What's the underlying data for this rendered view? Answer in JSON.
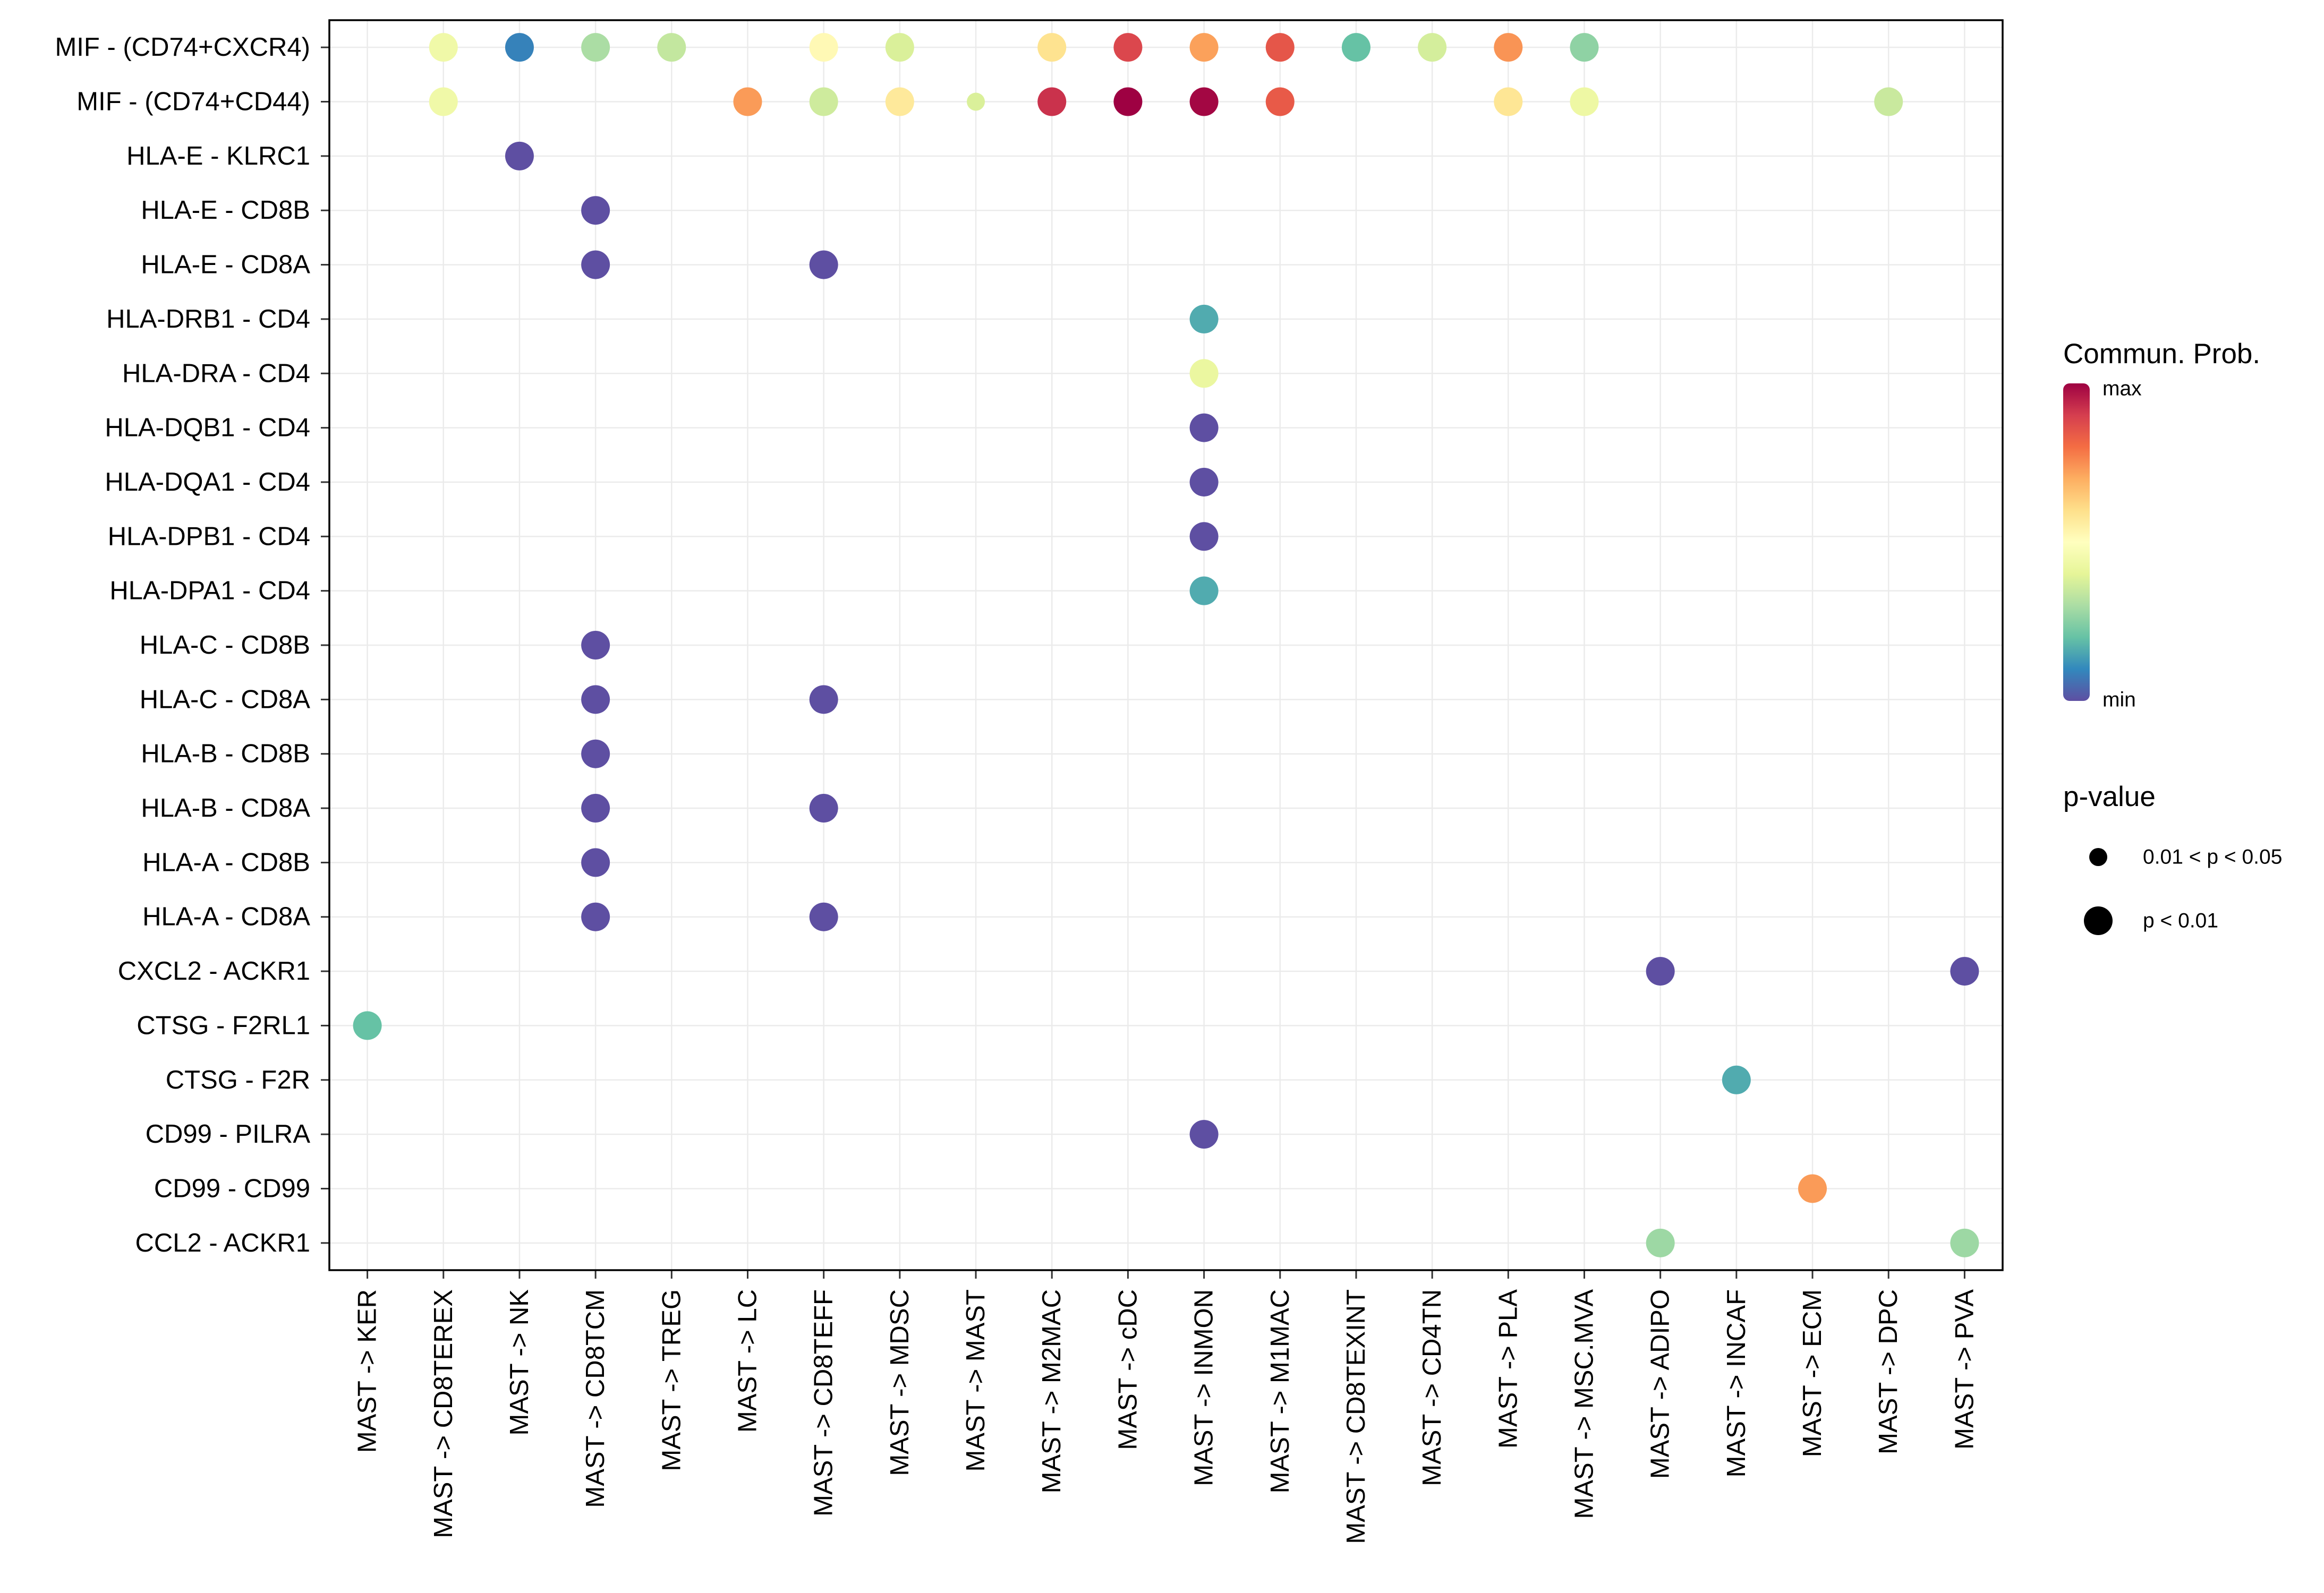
{
  "chart_data": {
    "type": "scatter",
    "subtype": "dot-plot",
    "x_categories": [
      "MAST -> KER",
      "MAST -> CD8TEREX",
      "MAST -> NK",
      "MAST -> CD8TCM",
      "MAST -> TREG",
      "MAST -> LC",
      "MAST -> CD8TEFF",
      "MAST -> MDSC",
      "MAST -> MAST",
      "MAST -> M2MAC",
      "MAST -> cDC",
      "MAST -> INMON",
      "MAST -> M1MAC",
      "MAST -> CD8TEXINT",
      "MAST -> CD4TN",
      "MAST -> PLA",
      "MAST -> MSC.MVA",
      "MAST -> ADIPO",
      "MAST -> INCAF",
      "MAST -> ECM",
      "MAST -> DPC",
      "MAST -> PVA"
    ],
    "y_categories": [
      "MIF - (CD74+CXCR4)",
      "MIF - (CD74+CD44)",
      "HLA-E - KLRC1",
      "HLA-E - CD8B",
      "HLA-E - CD8A",
      "HLA-DRB1 - CD4",
      "HLA-DRA - CD4",
      "HLA-DQB1 - CD4",
      "HLA-DQA1 - CD4",
      "HLA-DPB1 - CD4",
      "HLA-DPA1 - CD4",
      "HLA-C - CD8B",
      "HLA-C - CD8A",
      "HLA-B - CD8B",
      "HLA-B - CD8A",
      "HLA-A - CD8B",
      "HLA-A - CD8A",
      "CXCL2 - ACKR1",
      "CTSG - F2RL1",
      "CTSG - F2R",
      "CD99 - PILRA",
      "CD99 - CD99",
      "CCL2 - ACKR1"
    ],
    "points": [
      {
        "y": "MIF - (CD74+CXCR4)",
        "x": "MAST -> CD8TEREX",
        "prob": 0.44,
        "p": "p < 0.01"
      },
      {
        "y": "MIF - (CD74+CXCR4)",
        "x": "MAST -> NK",
        "prob": 0.09,
        "p": "p < 0.01"
      },
      {
        "y": "MIF - (CD74+CXCR4)",
        "x": "MAST -> CD8TCM",
        "prob": 0.3,
        "p": "p < 0.01"
      },
      {
        "y": "MIF - (CD74+CXCR4)",
        "x": "MAST -> TREG",
        "prob": 0.34,
        "p": "p < 0.01"
      },
      {
        "y": "MIF - (CD74+CXCR4)",
        "x": "MAST -> CD8TEFF",
        "prob": 0.52,
        "p": "p < 0.01"
      },
      {
        "y": "MIF - (CD74+CXCR4)",
        "x": "MAST -> MDSC",
        "prob": 0.38,
        "p": "p < 0.01"
      },
      {
        "y": "MIF - (CD74+CXCR4)",
        "x": "MAST -> M2MAC",
        "prob": 0.59,
        "p": "p < 0.01"
      },
      {
        "y": "MIF - (CD74+CXCR4)",
        "x": "MAST -> cDC",
        "prob": 0.88,
        "p": "p < 0.01"
      },
      {
        "y": "MIF - (CD74+CXCR4)",
        "x": "MAST -> INMON",
        "prob": 0.72,
        "p": "p < 0.01"
      },
      {
        "y": "MIF - (CD74+CXCR4)",
        "x": "MAST -> M1MAC",
        "prob": 0.85,
        "p": "p < 0.01"
      },
      {
        "y": "MIF - (CD74+CXCR4)",
        "x": "MAST -> CD8TEXINT",
        "prob": 0.2,
        "p": "p < 0.01"
      },
      {
        "y": "MIF - (CD74+CXCR4)",
        "x": "MAST -> CD4TN",
        "prob": 0.37,
        "p": "p < 0.01"
      },
      {
        "y": "MIF - (CD74+CXCR4)",
        "x": "MAST -> PLA",
        "prob": 0.74,
        "p": "p < 0.01"
      },
      {
        "y": "MIF - (CD74+CXCR4)",
        "x": "MAST -> MSC.MVA",
        "prob": 0.26,
        "p": "p < 0.01"
      },
      {
        "y": "MIF - (CD74+CD44)",
        "x": "MAST -> CD8TEREX",
        "prob": 0.44,
        "p": "p < 0.01"
      },
      {
        "y": "MIF - (CD74+CD44)",
        "x": "MAST -> LC",
        "prob": 0.73,
        "p": "p < 0.01"
      },
      {
        "y": "MIF - (CD74+CD44)",
        "x": "MAST -> CD8TEFF",
        "prob": 0.36,
        "p": "p < 0.01"
      },
      {
        "y": "MIF - (CD74+CD44)",
        "x": "MAST -> MDSC",
        "prob": 0.57,
        "p": "p < 0.01"
      },
      {
        "y": "MIF - (CD74+CD44)",
        "x": "MAST -> MAST",
        "prob": 0.38,
        "p": "0.01 < p < 0.05"
      },
      {
        "y": "MIF - (CD74+CD44)",
        "x": "MAST -> M2MAC",
        "prob": 0.92,
        "p": "p < 0.01"
      },
      {
        "y": "MIF - (CD74+CD44)",
        "x": "MAST -> cDC",
        "prob": 1.0,
        "p": "p < 0.01"
      },
      {
        "y": "MIF - (CD74+CD44)",
        "x": "MAST -> INMON",
        "prob": 0.99,
        "p": "p < 0.01"
      },
      {
        "y": "MIF - (CD74+CD44)",
        "x": "MAST -> M1MAC",
        "prob": 0.84,
        "p": "p < 0.01"
      },
      {
        "y": "MIF - (CD74+CD44)",
        "x": "MAST -> PLA",
        "prob": 0.58,
        "p": "p < 0.01"
      },
      {
        "y": "MIF - (CD74+CD44)",
        "x": "MAST -> MSC.MVA",
        "prob": 0.43,
        "p": "p < 0.01"
      },
      {
        "y": "MIF - (CD74+CD44)",
        "x": "MAST -> DPC",
        "prob": 0.35,
        "p": "p < 0.01"
      },
      {
        "y": "HLA-E - KLRC1",
        "x": "MAST -> NK",
        "prob": 0.0,
        "p": "p < 0.01"
      },
      {
        "y": "HLA-E - CD8B",
        "x": "MAST -> CD8TCM",
        "prob": 0.0,
        "p": "p < 0.01"
      },
      {
        "y": "HLA-E - CD8A",
        "x": "MAST -> CD8TCM",
        "prob": 0.0,
        "p": "p < 0.01"
      },
      {
        "y": "HLA-E - CD8A",
        "x": "MAST -> CD8TEFF",
        "prob": 0.0,
        "p": "p < 0.01"
      },
      {
        "y": "HLA-DRB1 - CD4",
        "x": "MAST -> INMON",
        "prob": 0.16,
        "p": "p < 0.01"
      },
      {
        "y": "HLA-DRA - CD4",
        "x": "MAST -> INMON",
        "prob": 0.42,
        "p": "p < 0.01"
      },
      {
        "y": "HLA-DQB1 - CD4",
        "x": "MAST -> INMON",
        "prob": 0.0,
        "p": "p < 0.01"
      },
      {
        "y": "HLA-DQA1 - CD4",
        "x": "MAST -> INMON",
        "prob": 0.0,
        "p": "p < 0.01"
      },
      {
        "y": "HLA-DPB1 - CD4",
        "x": "MAST -> INMON",
        "prob": 0.0,
        "p": "p < 0.01"
      },
      {
        "y": "HLA-DPA1 - CD4",
        "x": "MAST -> INMON",
        "prob": 0.16,
        "p": "p < 0.01"
      },
      {
        "y": "HLA-C - CD8B",
        "x": "MAST -> CD8TCM",
        "prob": 0.0,
        "p": "p < 0.01"
      },
      {
        "y": "HLA-C - CD8A",
        "x": "MAST -> CD8TCM",
        "prob": 0.0,
        "p": "p < 0.01"
      },
      {
        "y": "HLA-C - CD8A",
        "x": "MAST -> CD8TEFF",
        "prob": 0.0,
        "p": "p < 0.01"
      },
      {
        "y": "HLA-B - CD8B",
        "x": "MAST -> CD8TCM",
        "prob": 0.0,
        "p": "p < 0.01"
      },
      {
        "y": "HLA-B - CD8A",
        "x": "MAST -> CD8TCM",
        "prob": 0.0,
        "p": "p < 0.01"
      },
      {
        "y": "HLA-B - CD8A",
        "x": "MAST -> CD8TEFF",
        "prob": 0.0,
        "p": "p < 0.01"
      },
      {
        "y": "HLA-A - CD8B",
        "x": "MAST -> CD8TCM",
        "prob": 0.0,
        "p": "p < 0.01"
      },
      {
        "y": "HLA-A - CD8A",
        "x": "MAST -> CD8TCM",
        "prob": 0.0,
        "p": "p < 0.01"
      },
      {
        "y": "HLA-A - CD8A",
        "x": "MAST -> CD8TEFF",
        "prob": 0.0,
        "p": "p < 0.01"
      },
      {
        "y": "CXCL2 - ACKR1",
        "x": "MAST -> ADIPO",
        "prob": 0.0,
        "p": "p < 0.01"
      },
      {
        "y": "CXCL2 - ACKR1",
        "x": "MAST -> PVA",
        "prob": 0.0,
        "p": "p < 0.01"
      },
      {
        "y": "CTSG - F2RL1",
        "x": "MAST -> KER",
        "prob": 0.2,
        "p": "p < 0.01"
      },
      {
        "y": "CTSG - F2R",
        "x": "MAST -> INCAF",
        "prob": 0.16,
        "p": "p < 0.01"
      },
      {
        "y": "CD99 - PILRA",
        "x": "MAST -> INMON",
        "prob": 0.0,
        "p": "p < 0.01"
      },
      {
        "y": "CD99 - CD99",
        "x": "MAST -> ECM",
        "prob": 0.73,
        "p": "p < 0.01"
      },
      {
        "y": "CCL2 - ACKR1",
        "x": "MAST -> ADIPO",
        "prob": 0.28,
        "p": "p < 0.01"
      },
      {
        "y": "CCL2 - ACKR1",
        "x": "MAST -> PVA",
        "prob": 0.28,
        "p": "p < 0.01"
      }
    ],
    "color_legend": {
      "title": "Commun. Prob.",
      "max_label": "max",
      "min_label": "min",
      "palette": [
        "#5E4FA2",
        "#3288BD",
        "#66C2A5",
        "#ABDDA4",
        "#E6F598",
        "#FFFFBF",
        "#FEE08B",
        "#FDAE61",
        "#F46D43",
        "#D53E4F",
        "#9E0142"
      ]
    },
    "size_legend": {
      "title": "p-value",
      "entries": [
        {
          "label": "0.01 < p < 0.05",
          "size": "small"
        },
        {
          "label": "p < 0.01",
          "size": "large"
        }
      ]
    },
    "grid": true
  }
}
